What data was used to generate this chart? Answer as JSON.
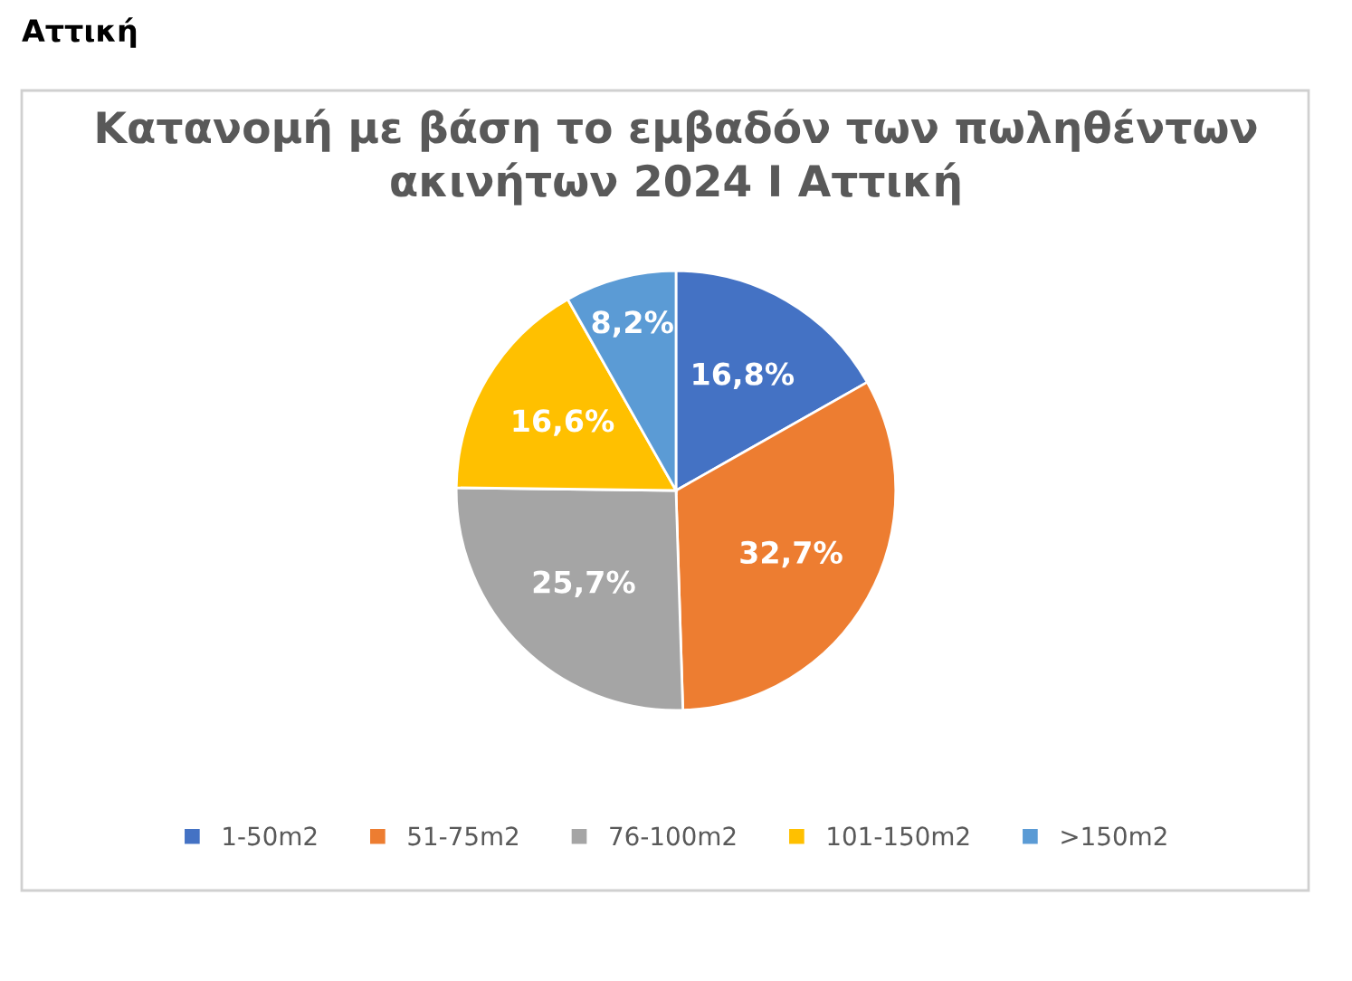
{
  "chart_data": {
    "type": "pie",
    "title": "Κατανομή με βάση το εμβαδόν των πωληθέντων\nακινήτων 2024 Ι Αττική",
    "annotations": [
      "Αττική"
    ],
    "categories": [
      "1-50m2",
      "51-75m2",
      "76-100m2",
      "101-150m2",
      ">150m2"
    ],
    "values": [
      16.8,
      32.7,
      25.7,
      16.6,
      8.2
    ],
    "value_labels": [
      "16,8%",
      "32,7%",
      "25,7%",
      "16,6%",
      "8,2%"
    ],
    "colors": [
      "#4472c4",
      "#ed7d31",
      "#a5a5a5",
      "#ffc000",
      "#5b9bd5"
    ],
    "legend": "bottom"
  }
}
